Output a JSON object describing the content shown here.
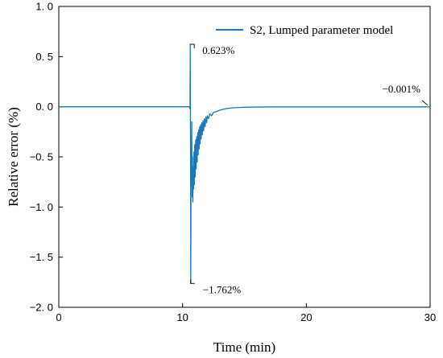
{
  "chart_data": {
    "type": "line",
    "title": "",
    "xlabel": "Time (min)",
    "ylabel": "Relative error (%)",
    "xlim": [
      0,
      30
    ],
    "ylim": [
      -2.0,
      1.0
    ],
    "xticks": [
      0,
      10,
      20,
      30
    ],
    "xtick_labels": [
      "0",
      "10",
      "20",
      "30"
    ],
    "yticks": [
      1.0,
      0.5,
      0.0,
      -0.5,
      -1.0,
      -1.5,
      -2.0
    ],
    "ytick_labels": [
      "1. 0",
      "0. 5",
      "0. 0",
      "−0. 5",
      "−1. 0",
      "−1. 5",
      "−2. 0"
    ],
    "grid": false,
    "legend_position": "top-right",
    "series_color": "#1f77b4",
    "series": [
      {
        "name": "S2, Lumped parameter model",
        "x": [
          0,
          10.45,
          10.5,
          10.55,
          10.6,
          10.62,
          10.64,
          10.66,
          10.68,
          10.7,
          10.72,
          10.74,
          10.76,
          10.78,
          10.8,
          10.83,
          10.86,
          10.89,
          10.92,
          10.95,
          10.98,
          11.02,
          11.06,
          11.1,
          11.14,
          11.18,
          11.22,
          11.26,
          11.3,
          11.34,
          11.38,
          11.42,
          11.46,
          11.5,
          11.55,
          11.6,
          11.65,
          11.7,
          11.76,
          11.82,
          11.88,
          11.94,
          12.0,
          12.1,
          12.2,
          12.35,
          12.5,
          12.7,
          13.0,
          13.3,
          13.6,
          14.0,
          14.5,
          15.0,
          16.0,
          17.0,
          18.0,
          20.0,
          25.0,
          30.0
        ],
        "y": [
          0,
          0,
          0,
          -0.005,
          -0.02,
          0.623,
          -0.2,
          -1.762,
          -0.75,
          -0.3,
          -0.55,
          -0.15,
          -0.7,
          -0.9,
          -0.5,
          -0.95,
          -0.6,
          -0.82,
          -0.45,
          -0.78,
          -0.38,
          -0.7,
          -0.33,
          -0.62,
          -0.3,
          -0.55,
          -0.26,
          -0.48,
          -0.23,
          -0.42,
          -0.2,
          -0.37,
          -0.18,
          -0.32,
          -0.16,
          -0.28,
          -0.14,
          -0.24,
          -0.12,
          -0.2,
          -0.1,
          -0.16,
          -0.09,
          -0.12,
          -0.07,
          -0.09,
          -0.055,
          -0.05,
          -0.035,
          -0.025,
          -0.018,
          -0.012,
          -0.008,
          -0.005,
          -0.003,
          -0.002,
          -0.001,
          -0.001,
          -0.001,
          -0.001
        ]
      }
    ],
    "annotations": [
      {
        "text": "0.623%",
        "x": 10.62,
        "y": 0.623
      },
      {
        "text": "−1.762%",
        "x": 10.66,
        "y": -1.762
      },
      {
        "text": "−0.001%",
        "x": 30,
        "y": -0.001
      }
    ]
  }
}
